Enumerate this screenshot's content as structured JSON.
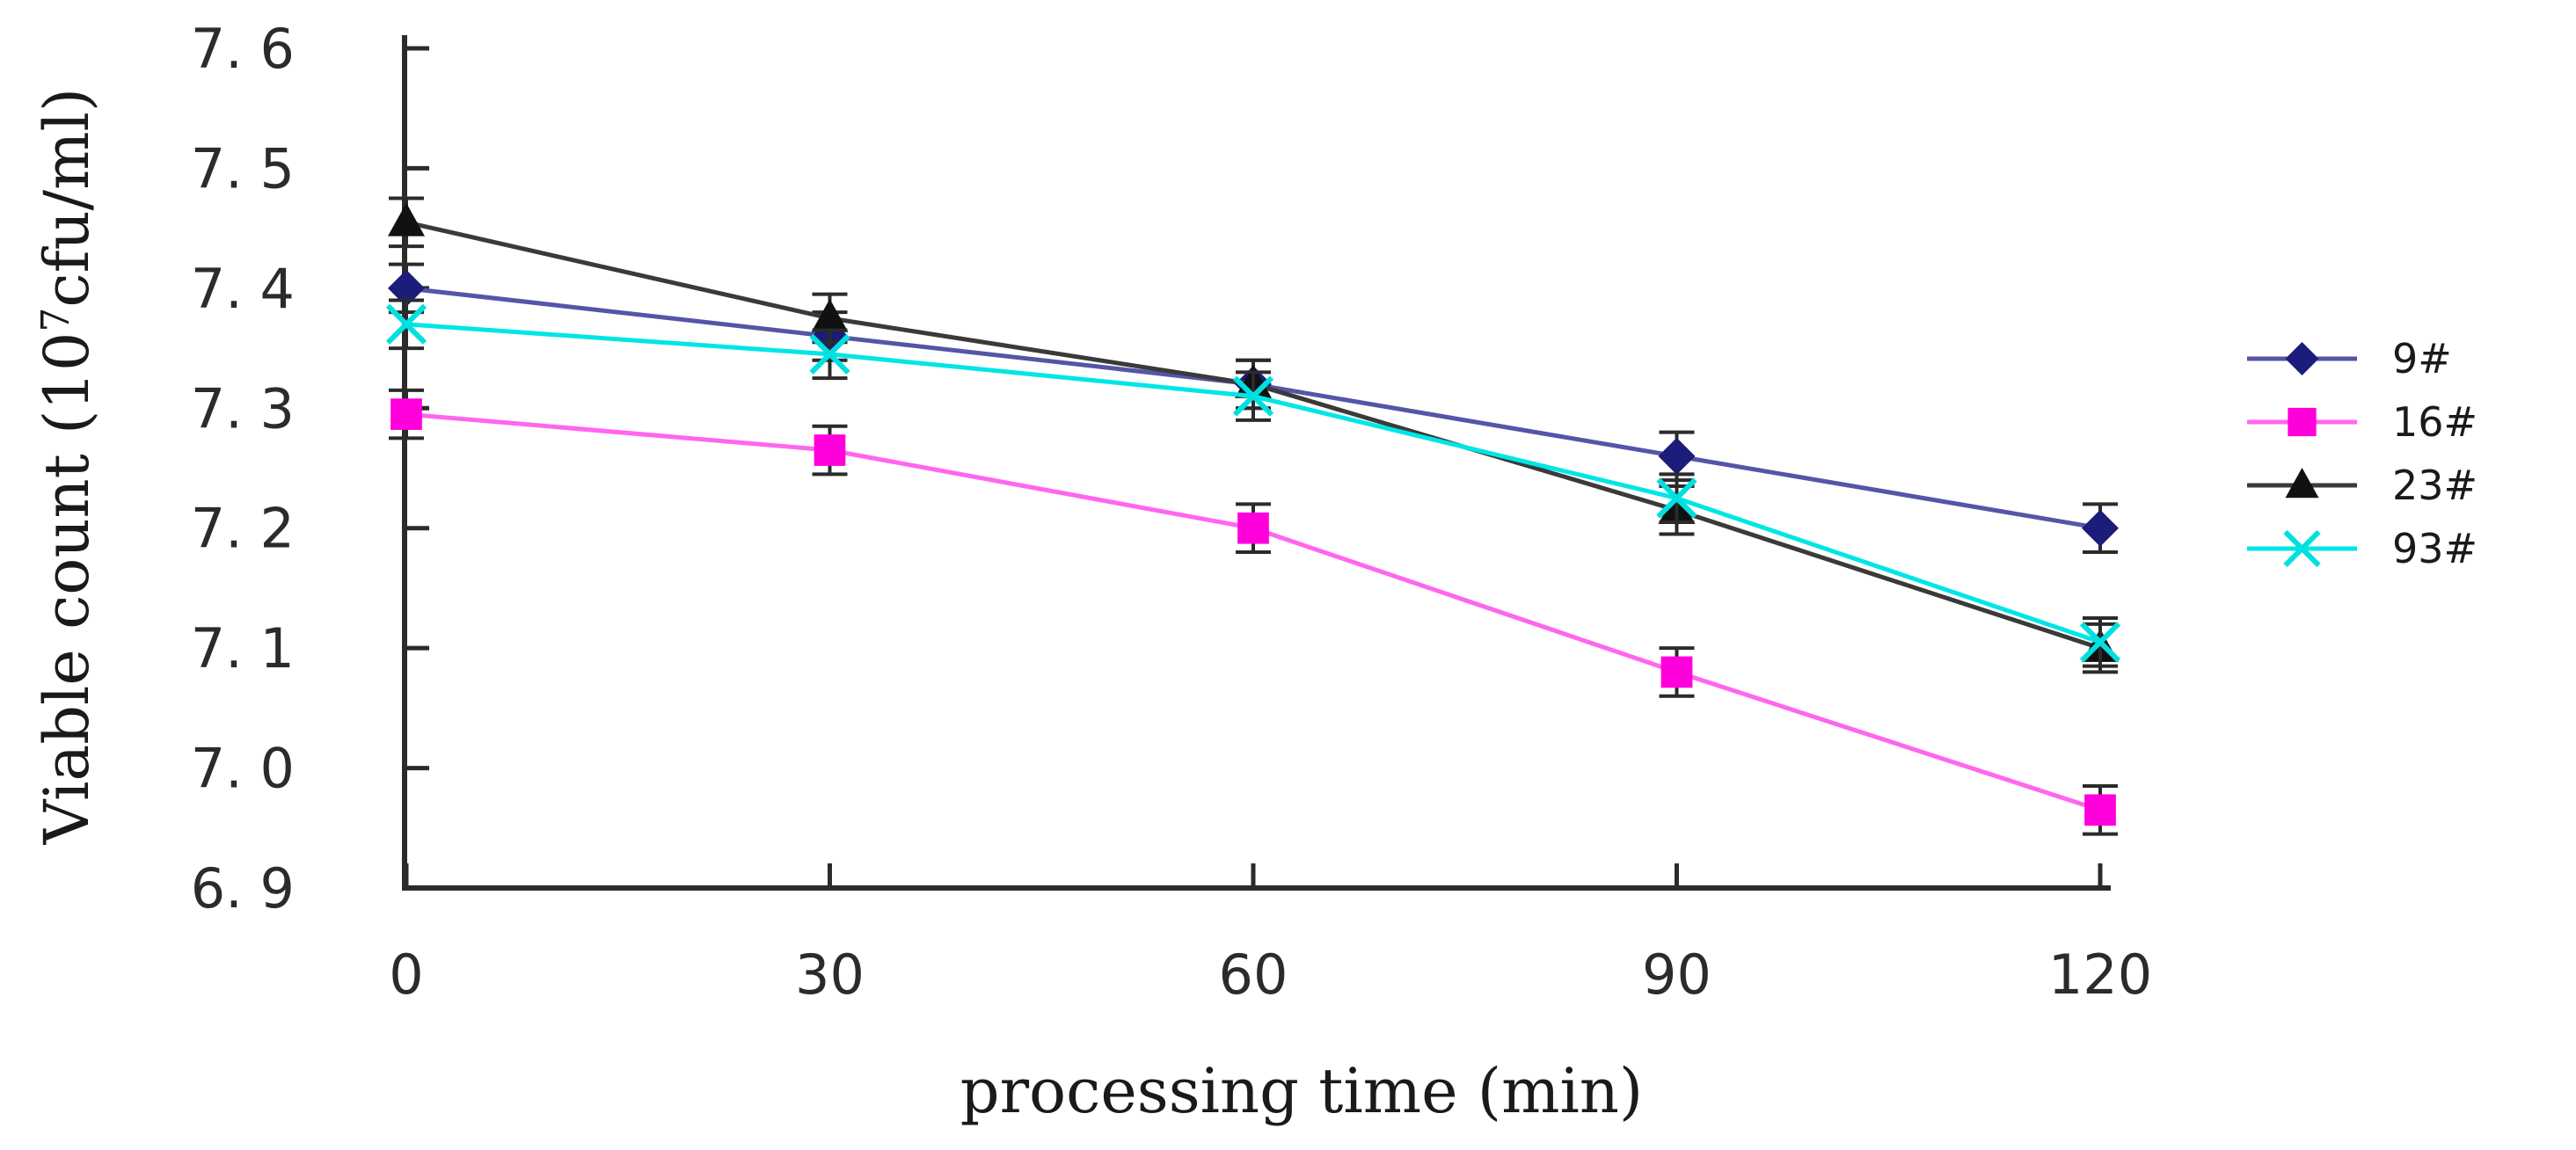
{
  "chart_data": {
    "type": "line",
    "title": "",
    "xlabel": "processing time (min)",
    "ylabel": {
      "prefix": "Viable count (10",
      "superscript": "7",
      "suffix": "cfu/ml)"
    },
    "x": [
      0,
      30,
      60,
      90,
      120
    ],
    "xlim": [
      0,
      120
    ],
    "ylim": [
      6.9,
      7.6
    ],
    "y_ticks": [
      "6. 9",
      "7. 0",
      "7. 1",
      "7. 2",
      "7. 3",
      "7. 4",
      "7. 5",
      "7. 6"
    ],
    "y_tick_values": [
      6.9,
      7.0,
      7.1,
      7.2,
      7.3,
      7.4,
      7.5,
      7.6
    ],
    "x_ticks": [
      "0",
      "30",
      "60",
      "90",
      "120"
    ],
    "error_bar": 0.02,
    "grid": false,
    "legend_position": "right",
    "series": [
      {
        "name": "9#",
        "values": [
          7.4,
          7.36,
          7.32,
          7.26,
          7.2
        ],
        "color": "#5555a8",
        "marker": "diamond",
        "marker_color": "#1c1c7a"
      },
      {
        "name": "16#",
        "values": [
          7.295,
          7.265,
          7.2,
          7.08,
          6.965
        ],
        "color": "#ff66ee",
        "marker": "square",
        "marker_color": "#ff00dd"
      },
      {
        "name": "23#",
        "values": [
          7.455,
          7.375,
          7.32,
          7.215,
          7.1
        ],
        "color": "#3a3a3a",
        "marker": "triangle",
        "marker_color": "#111111"
      },
      {
        "name": "93#",
        "values": [
          7.37,
          7.345,
          7.31,
          7.225,
          7.105
        ],
        "color": "#00e5e5",
        "marker": "x",
        "marker_color": "#00e0e0"
      }
    ]
  }
}
